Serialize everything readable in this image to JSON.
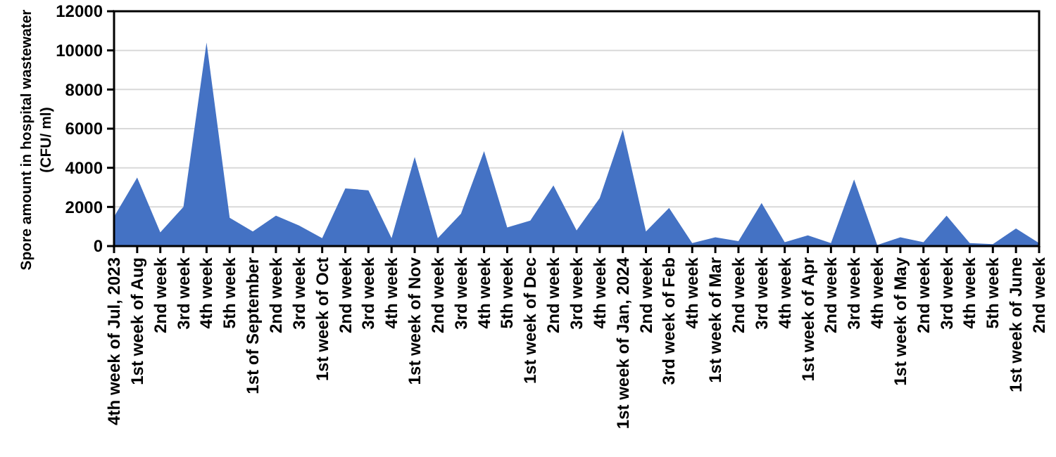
{
  "chart_data": {
    "type": "area",
    "ylabel": "Spore amount in hospital wastewater\n(CFU/ ml)",
    "categories": [
      "4th week of Jul, 2023",
      "1st week of Aug",
      "2nd week",
      "3rd week",
      "4th week",
      "5th week",
      "1st of September",
      "2nd week",
      "3rd week",
      "1st week of Oct",
      "2nd week",
      "3rd week",
      "4th week",
      "1st week of Nov",
      "2nd week",
      "3rd week",
      "4th week",
      "5th week",
      "1st week of Dec",
      "2nd week",
      "3rd week",
      "4th week",
      "1st week of Jan, 2024",
      "2nd week",
      "3rd week of Feb",
      "4th week",
      "1st week of Mar",
      "2nd week",
      "3rd week",
      "4th week",
      "1st week of Apr",
      "2nd week",
      "3rd week",
      "4th week",
      "1st week of May",
      "2nd week",
      "3rd week",
      "4th week",
      "5th week",
      "1st week of June",
      "2nd week"
    ],
    "series": [
      {
        "color": "#4472c4",
        "values": [
          1500,
          3500,
          700,
          2000,
          10400,
          1450,
          750,
          1550,
          1050,
          400,
          2950,
          2850,
          400,
          4550,
          400,
          1650,
          4850,
          950,
          1300,
          3100,
          800,
          2450,
          5950,
          750,
          1950,
          150,
          450,
          250,
          2200,
          200,
          550,
          150,
          3400,
          50,
          450,
          200,
          1550,
          150,
          100,
          900,
          150
        ]
      }
    ],
    "ylim": [
      0,
      12000
    ],
    "yticks": [
      0,
      2000,
      4000,
      6000,
      8000,
      10000,
      12000
    ],
    "grid": "y"
  }
}
